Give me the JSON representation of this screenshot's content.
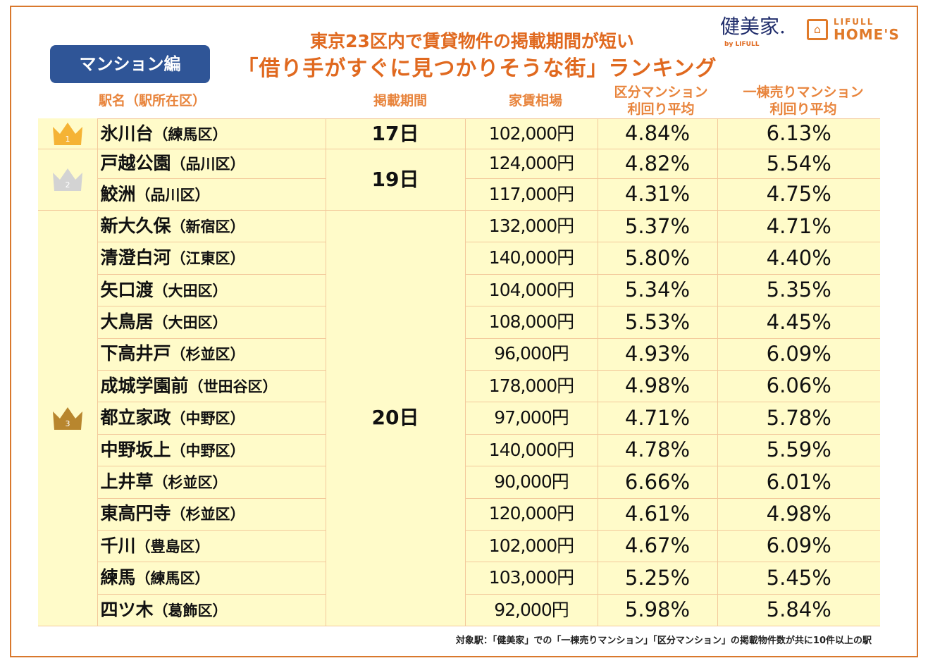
{
  "badge": "マンション編",
  "title": {
    "line1": "東京23区内で賃貸物件の掲載期間が短い",
    "line2": "「借り手がすぐに見つかりそうな街」ランキング"
  },
  "logos": {
    "kenbiya": "健美家.",
    "kenbiya_sub": "by LIFULL",
    "homes_top": "LIFULL",
    "homes_main": "HOME'S"
  },
  "headers": {
    "station": "駅名（駅所在区）",
    "period": "掲載期間",
    "rent": "家賃相場",
    "kubun": [
      "区分マンション",
      "利回り平均"
    ],
    "itto": [
      "一棟売りマンション",
      "利回り平均"
    ]
  },
  "colors": {
    "gold": "#f5b335",
    "silver": "#d3d3d3",
    "bronze": "#b8862e",
    "accent": "#e0691f",
    "badge": "#2f5597"
  },
  "groups": [
    {
      "rank": "1",
      "period": "17日",
      "crown": "gold",
      "rows": [
        {
          "station": "氷川台",
          "ward": "（練馬区）",
          "rent": "102,000円",
          "kubun": "4.84%",
          "itto": "6.13%"
        }
      ]
    },
    {
      "rank": "2",
      "period": "19日",
      "crown": "silver",
      "rows": [
        {
          "station": "戸越公園",
          "ward": "（品川区）",
          "rent": "124,000円",
          "kubun": "4.82%",
          "itto": "5.54%"
        },
        {
          "station": "鮫洲",
          "ward": "（品川区）",
          "rent": "117,000円",
          "kubun": "4.31%",
          "itto": "4.75%"
        }
      ]
    },
    {
      "rank": "3",
      "period": "20日",
      "crown": "bronze",
      "rows": [
        {
          "station": "新大久保",
          "ward": "（新宿区）",
          "rent": "132,000円",
          "kubun": "5.37%",
          "itto": "4.71%"
        },
        {
          "station": "清澄白河",
          "ward": "（江東区）",
          "rent": "140,000円",
          "kubun": "5.80%",
          "itto": "4.40%"
        },
        {
          "station": "矢口渡",
          "ward": "（大田区）",
          "rent": "104,000円",
          "kubun": "5.34%",
          "itto": "5.35%"
        },
        {
          "station": "大鳥居",
          "ward": "（大田区）",
          "rent": "108,000円",
          "kubun": "5.53%",
          "itto": "4.45%"
        },
        {
          "station": "下高井戸",
          "ward": "（杉並区）",
          "rent": "96,000円",
          "kubun": "4.93%",
          "itto": "6.09%"
        },
        {
          "station": "成城学園前",
          "ward": "（世田谷区）",
          "rent": "178,000円",
          "kubun": "4.98%",
          "itto": "6.06%"
        },
        {
          "station": "都立家政",
          "ward": "（中野区）",
          "rent": "97,000円",
          "kubun": "4.71%",
          "itto": "5.78%"
        },
        {
          "station": "中野坂上",
          "ward": "（中野区）",
          "rent": "140,000円",
          "kubun": "4.78%",
          "itto": "5.59%"
        },
        {
          "station": "上井草",
          "ward": "（杉並区）",
          "rent": "90,000円",
          "kubun": "6.66%",
          "itto": "6.01%"
        },
        {
          "station": "東高円寺",
          "ward": "（杉並区）",
          "rent": "120,000円",
          "kubun": "4.61%",
          "itto": "4.98%"
        },
        {
          "station": "千川",
          "ward": "（豊島区）",
          "rent": "102,000円",
          "kubun": "4.67%",
          "itto": "6.09%"
        },
        {
          "station": "練馬",
          "ward": "（練馬区）",
          "rent": "103,000円",
          "kubun": "5.25%",
          "itto": "5.45%"
        },
        {
          "station": "四ツ木",
          "ward": "（葛飾区）",
          "rent": "92,000円",
          "kubun": "5.98%",
          "itto": "5.84%"
        }
      ]
    }
  ],
  "footnote": "対象駅：「健美家」での「一棟売りマンション」「区分マンション」の掲載物件数が共に10件以上の駅"
}
